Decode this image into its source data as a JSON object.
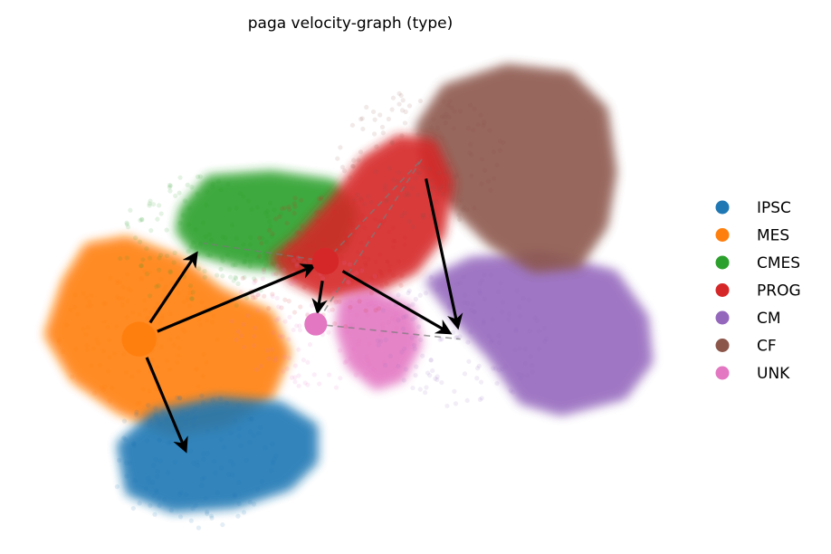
{
  "chart_data": {
    "type": "scatter",
    "title": "paga velocity-graph (type)",
    "xlabel": "",
    "ylabel": "",
    "axes_visible": false,
    "grid": false,
    "xlim": [
      0,
      10
    ],
    "ylim": [
      0,
      8
    ],
    "legend": {
      "placement": "right",
      "entries": [
        "IPSC",
        "MES",
        "CMES",
        "PROG",
        "CM",
        "CF",
        "UNK"
      ]
    },
    "clusters": [
      {
        "name": "IPSC",
        "color": "#1f77b4",
        "center": [
          2.4,
          1.05
        ],
        "node_size": 0
      },
      {
        "name": "MES",
        "color": "#ff7f0e",
        "center": [
          1.6,
          3.1
        ],
        "node_size": 3
      },
      {
        "name": "CMES",
        "color": "#2ca02c",
        "center": [
          2.6,
          4.7
        ],
        "node_size": 0
      },
      {
        "name": "PROG",
        "color": "#d62728",
        "center": [
          4.5,
          4.4
        ],
        "node_size": 2
      },
      {
        "name": "CM",
        "color": "#9467bd",
        "center": [
          6.6,
          3.1
        ],
        "node_size": 0
      },
      {
        "name": "CF",
        "color": "#8c564b",
        "center": [
          6.0,
          6.1
        ],
        "node_size": 0
      },
      {
        "name": "UNK",
        "color": "#e377c2",
        "center": [
          4.35,
          3.35
        ],
        "node_size": 1.5
      }
    ],
    "edges_arrows": [
      [
        "MES",
        "CMES"
      ],
      [
        "MES",
        "IPSC"
      ],
      [
        "MES",
        "PROG"
      ],
      [
        "PROG",
        "UNK"
      ],
      [
        "PROG",
        "CM"
      ],
      [
        "CF",
        "CM"
      ]
    ],
    "edges_dashed": [
      [
        "PROG",
        "CF"
      ],
      [
        "PROG",
        "CMES"
      ],
      [
        "CF",
        "UNK"
      ],
      [
        "UNK",
        "CM"
      ]
    ]
  }
}
